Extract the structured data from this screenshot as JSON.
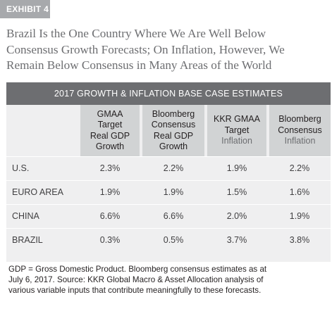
{
  "exhibit": {
    "tag": "EXHIBIT 4"
  },
  "headline": {
    "lines": [
      "Brazil Is the One Country Where We Are Well Below",
      "Consensus Growth Forecasts; On Inflation, However, We",
      "Remain Below Consensus in Many Areas of the World"
    ]
  },
  "table": {
    "title": "2017 GROWTH & INFLATION BASE CASE ESTIMATES",
    "columns": [
      {
        "lines": [
          "GMAA",
          "Target",
          "Real GDP",
          "Growth"
        ]
      },
      {
        "lines": [
          "Bloomberg",
          "Consensus",
          "Real GDP",
          "Growth"
        ]
      },
      {
        "lines": [
          "KKR GMAA",
          "Target"
        ],
        "unit": "Inflation"
      },
      {
        "lines": [
          "Bloomberg",
          "Consensus"
        ],
        "unit": "Inflation"
      }
    ],
    "rows": [
      {
        "label": "U.S.",
        "values": [
          "2.3%",
          "2.2%",
          "1.9%",
          "2.2%"
        ]
      },
      {
        "label": "EURO AREA",
        "values": [
          "1.9%",
          "1.9%",
          "1.5%",
          "1.6%"
        ]
      },
      {
        "label": "CHINA",
        "values": [
          "6.6%",
          "6.6%",
          "2.0%",
          "1.9%"
        ]
      },
      {
        "label": "BRAZIL",
        "values": [
          "0.3%",
          "0.5%",
          "3.7%",
          "3.8%"
        ]
      }
    ]
  },
  "footnote": {
    "lines": [
      "GDP = Gross Domestic Product. Bloomberg consensus estimates as at",
      "July 6, 2017. Source: KKR Global Macro & Asset Allocation analysis of",
      "various variable inputs that contribute meaningfully to these forecasts."
    ]
  },
  "colors": {
    "tag_background": "#a7a9ac",
    "headline_text": "#6d6e71",
    "table_title_background": "#6d6e71",
    "column_header_background": "#d1d3d4",
    "table_body_background": "#efeff0",
    "row_divider": "#ffffff"
  }
}
